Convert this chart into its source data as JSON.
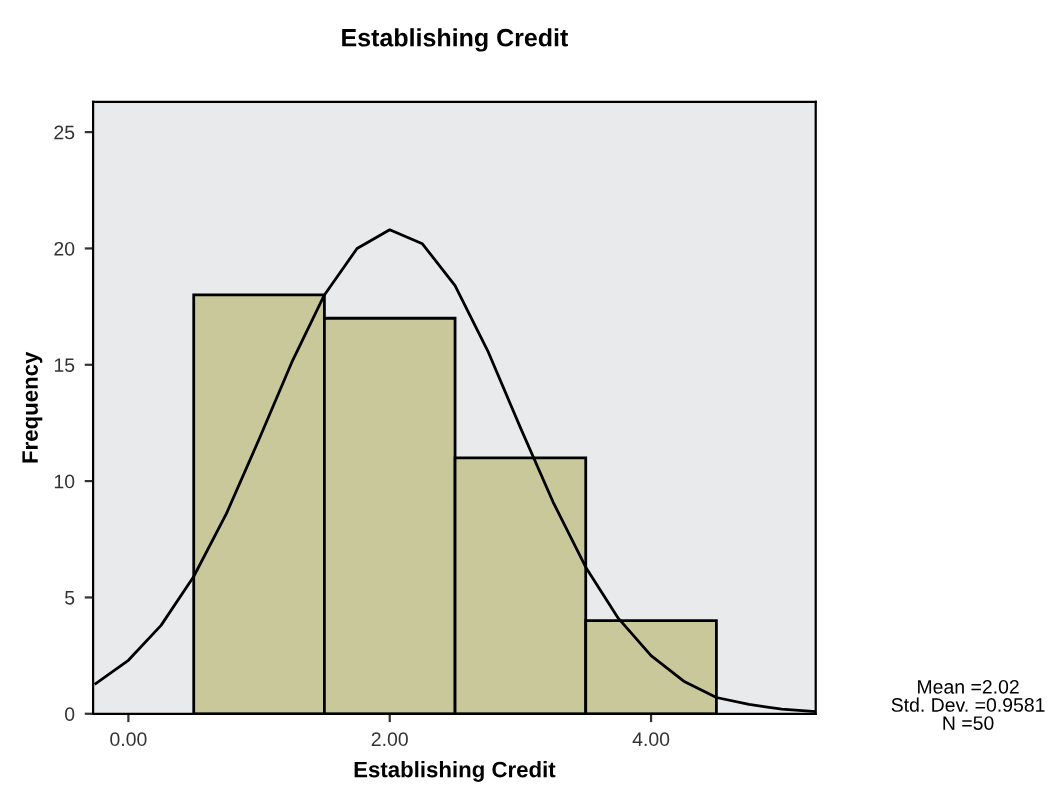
{
  "chart_data": {
    "type": "histogram",
    "title": "Establishing Credit",
    "xlabel": "Establishing Credit",
    "ylabel": "Frequency",
    "bins": [
      0.5,
      1.5,
      2.5,
      3.5,
      4.5
    ],
    "values": [
      18,
      17,
      11,
      4
    ],
    "color": "#c8c89a",
    "series": [
      {
        "type": "line",
        "color": "#000000",
        "x": [
          -0.25,
          0,
          0.25,
          0.5,
          0.75,
          1,
          1.25,
          1.5,
          1.75,
          2,
          2.25,
          2.5,
          2.75,
          3,
          3.25,
          3.5,
          3.75,
          4,
          4.25,
          4.5,
          4.75,
          5,
          5.25
        ],
        "values": [
          1.3,
          2.3,
          3.8,
          5.9,
          8.6,
          11.8,
          15.1,
          18.0,
          20.0,
          20.8,
          20.2,
          18.4,
          15.6,
          12.3,
          9.1,
          6.3,
          4.1,
          2.5,
          1.4,
          0.7,
          0.4,
          0.2,
          0.1
        ]
      }
    ],
    "xlim": [
      -0.27,
      5.26
    ],
    "xticks": [
      {
        "value": 0,
        "label": "0.00"
      },
      {
        "value": 2,
        "label": "2.00"
      },
      {
        "value": 4,
        "label": "4.00"
      }
    ],
    "ylim": [
      0,
      26.3
    ],
    "yticks": [
      0,
      5,
      10,
      15,
      20,
      25
    ],
    "grid": false,
    "annotations": [
      "Mean =2.02",
      "Std. Dev. =0.9581",
      "N =50"
    ]
  }
}
